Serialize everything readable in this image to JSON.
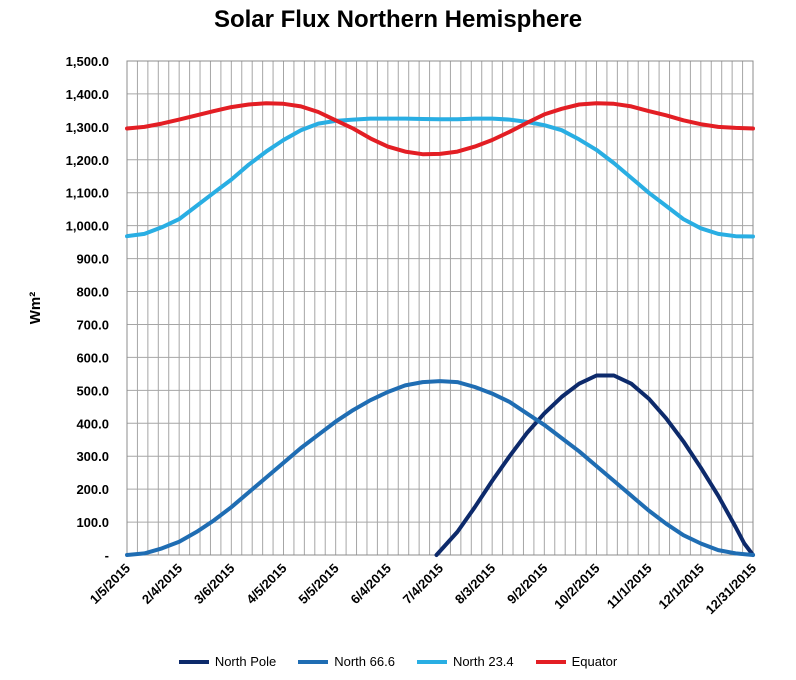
{
  "chart_data": {
    "type": "line",
    "title": "Solar Flux Northern Hemisphere",
    "ylabel": "Wm²",
    "xlabel": "",
    "ylim": [
      0,
      1500
    ],
    "yticks": [
      "-",
      "100.0",
      "200.0",
      "300.0",
      "400.0",
      "500.0",
      "600.0",
      "700.0",
      "800.0",
      "900.0",
      "1,000.0",
      "1,100.0",
      "1,200.0",
      "1,300.0",
      "1,400.0",
      "1,500.0"
    ],
    "ytick_values": [
      0,
      100,
      200,
      300,
      400,
      500,
      600,
      700,
      800,
      900,
      1000,
      1100,
      1200,
      1300,
      1400,
      1500
    ],
    "x_tick_labels": [
      "1/5/2015",
      "2/4/2015",
      "3/6/2015",
      "4/5/2015",
      "5/5/2015",
      "6/4/2015",
      "7/4/2015",
      "8/3/2015",
      "9/2/2015",
      "10/2/2015",
      "11/1/2015",
      "12/1/2015",
      "12/31/2015"
    ],
    "x_tick_days": [
      5,
      35,
      65,
      95,
      125,
      155,
      185,
      215,
      245,
      275,
      305,
      335,
      365
    ],
    "xlim": [
      5,
      365
    ],
    "grid": true,
    "legend_position": "bottom",
    "series": [
      {
        "name": "North Pole",
        "color": "#0d2a6b",
        "x": [
          5,
          175,
          183,
          195,
          205,
          215,
          225,
          235,
          245,
          255,
          265,
          275,
          285,
          295,
          305,
          315,
          325,
          335,
          345,
          355,
          360,
          365
        ],
        "y": [
          null,
          null,
          0,
          70,
          145,
          225,
          300,
          370,
          430,
          480,
          520,
          545,
          545,
          520,
          475,
          415,
          345,
          265,
          180,
          85,
          35,
          0
        ]
      },
      {
        "name": "North 66.6",
        "color": "#1f6db3",
        "x": [
          5,
          15,
          25,
          35,
          45,
          55,
          65,
          75,
          85,
          95,
          105,
          115,
          125,
          135,
          145,
          155,
          165,
          175,
          185,
          195,
          205,
          215,
          225,
          235,
          245,
          255,
          265,
          275,
          285,
          295,
          305,
          315,
          325,
          335,
          345,
          355,
          365
        ],
        "y": [
          0,
          5,
          20,
          40,
          70,
          105,
          145,
          190,
          235,
          280,
          325,
          365,
          405,
          440,
          470,
          495,
          515,
          525,
          528,
          525,
          510,
          490,
          465,
          430,
          395,
          355,
          315,
          270,
          225,
          180,
          135,
          95,
          60,
          35,
          15,
          5,
          0
        ]
      },
      {
        "name": "North 23.4",
        "color": "#29aee3",
        "x": [
          5,
          15,
          25,
          35,
          45,
          55,
          65,
          75,
          85,
          95,
          105,
          115,
          125,
          135,
          145,
          155,
          165,
          175,
          185,
          195,
          205,
          215,
          225,
          235,
          245,
          255,
          265,
          275,
          285,
          295,
          305,
          315,
          325,
          335,
          345,
          355,
          365
        ],
        "y": [
          968,
          975,
          995,
          1020,
          1060,
          1100,
          1140,
          1185,
          1225,
          1260,
          1290,
          1310,
          1318,
          1322,
          1325,
          1325,
          1325,
          1324,
          1323,
          1323,
          1325,
          1325,
          1322,
          1315,
          1305,
          1290,
          1262,
          1230,
          1190,
          1145,
          1100,
          1060,
          1020,
          992,
          975,
          968,
          967
        ]
      },
      {
        "name": "Equator",
        "color": "#e31e24",
        "x": [
          5,
          15,
          25,
          35,
          45,
          55,
          65,
          75,
          85,
          95,
          105,
          115,
          125,
          135,
          145,
          155,
          165,
          175,
          185,
          195,
          205,
          215,
          225,
          235,
          245,
          255,
          265,
          275,
          285,
          295,
          305,
          315,
          325,
          335,
          345,
          355,
          365
        ],
        "y": [
          1295,
          1300,
          1310,
          1322,
          1335,
          1348,
          1360,
          1368,
          1372,
          1370,
          1362,
          1345,
          1320,
          1295,
          1265,
          1240,
          1225,
          1217,
          1218,
          1225,
          1240,
          1260,
          1285,
          1312,
          1338,
          1355,
          1368,
          1372,
          1370,
          1362,
          1348,
          1335,
          1320,
          1308,
          1300,
          1297,
          1295
        ]
      }
    ]
  }
}
